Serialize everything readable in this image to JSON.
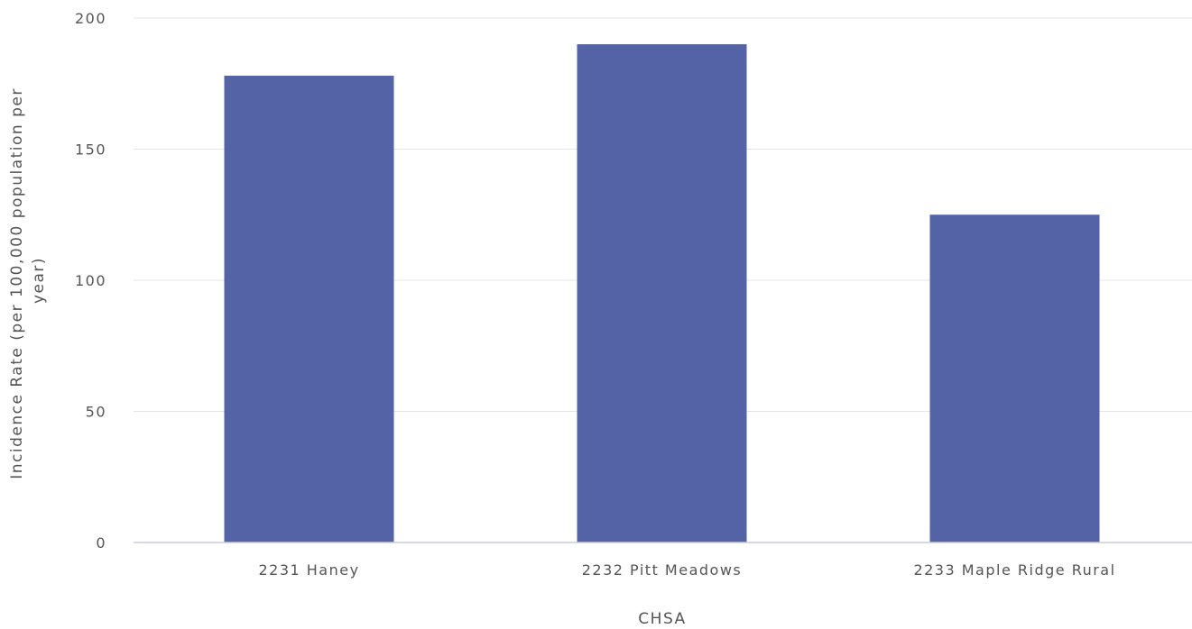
{
  "chart_data": {
    "type": "bar",
    "categories": [
      "2231 Haney",
      "2232 Pitt Meadows",
      "2233 Maple Ridge Rural"
    ],
    "series": [
      {
        "values": [
          178,
          190,
          125
        ],
        "color": "#5363a5"
      }
    ],
    "xlabel": "CHSA",
    "ylabel_lines": [
      "Incidence Rate (per 100,000 population per",
      "year)"
    ],
    "ylim": [
      0,
      200
    ],
    "yticks": [
      0,
      50,
      100,
      150,
      200
    ],
    "grid": true,
    "legend": "none"
  },
  "colors": {
    "bar": "#5363a5",
    "gridline": "#e3e5ec",
    "baseline": "#c9ccdb",
    "text": "#555555"
  }
}
